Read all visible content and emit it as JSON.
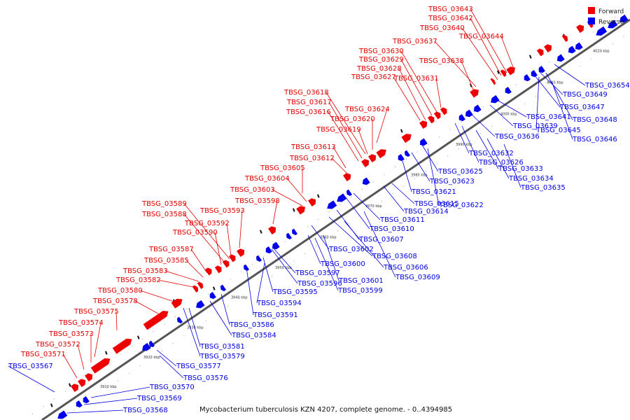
{
  "caption": "Mycobacterium tuberculosis KZN 4207, complete genome. - 0..4394985",
  "legend": {
    "forward_label": "Forward",
    "reverse_label": "Reverse",
    "forward_color": "#ee0000",
    "reverse_color": "#0000ee"
  },
  "axis_ticks": [
    "3910 kbp",
    "3920 kbp",
    "3930 kbp",
    "3940 kbp",
    "3950 kbp",
    "3960 kbp",
    "3970 kbp",
    "3980 kbp",
    "3990 kbp",
    "4000 kbp",
    "4010 kbp",
    "4020 kbp"
  ],
  "forward_genes": [
    "TBSG_03643",
    "TBSG_03642",
    "TBSG_03640",
    "TBSG_03644",
    "TBSG_03637",
    "TBSG_03638",
    "TBSG_03630",
    "TBSG_03629",
    "TBSG_03628",
    "TBSG_03631",
    "TBSG_03627",
    "TBSG_03618",
    "TBSG_03617",
    "TBSG_03616",
    "TBSG_03624",
    "TBSG_03620",
    "TBSG_03619",
    "TBSG_03613",
    "TBSG_03612",
    "TBSG_03605",
    "TBSG_03604",
    "TBSG_03603",
    "TBSG_03598",
    "TBSG_03589",
    "TBSG_03593",
    "TBSG_03588",
    "TBSG_03592",
    "TBSG_03590",
    "TBSG_03587",
    "TBSG_03585",
    "TBSG_03583",
    "TBSG_03582",
    "TBSG_03580",
    "TBSG_03578",
    "TBSG_03575",
    "TBSG_03574",
    "TBSG_03573",
    "TBSG_03572",
    "TBSG_03571"
  ],
  "reverse_genes": [
    "TBSG_03654",
    "TBSG_03649",
    "TBSG_03647",
    "TBSG_03648",
    "TBSG_03641",
    "TBSG_03639",
    "TBSG_03645",
    "TBSG_03636",
    "TBSG_03646",
    "TBSG_03632",
    "TBSG_03626",
    "TBSG_03633",
    "TBSG_03625",
    "TBSG_03634",
    "TBSG_03623",
    "TBSG_03635",
    "TBSG_03621",
    "TBSG_03615",
    "TBSG_03622",
    "TBSG_03614",
    "TBSG_03611",
    "TBSG_03610",
    "TBSG_03607",
    "TBSG_03602",
    "TBSG_03608",
    "TBSG_03600",
    "TBSG_03606",
    "TBSG_03597",
    "TBSG_03601",
    "TBSG_03609",
    "TBSG_03596",
    "TBSG_03599",
    "TBSG_03595",
    "TBSG_03594",
    "TBSG_03591",
    "TBSG_03586",
    "TBSG_03584",
    "TBSG_03581",
    "TBSG_03579",
    "TBSG_03577",
    "TBSG_03576",
    "TBSG_03567",
    "TBSG_03570",
    "TBSG_03569",
    "TBSG_03568"
  ]
}
